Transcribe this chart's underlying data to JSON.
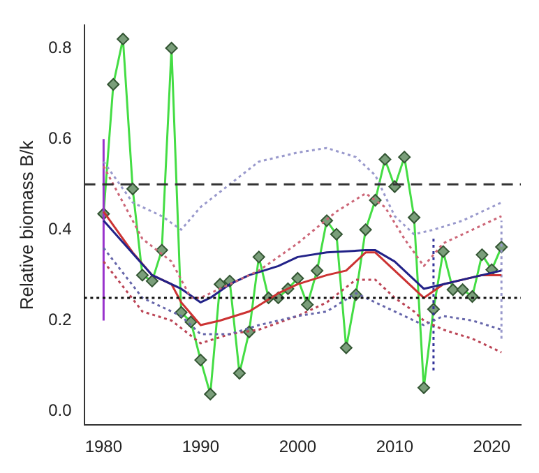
{
  "chart_data": {
    "type": "line",
    "ylabel": "Relative biomass B/k",
    "xlim": [
      1978,
      2023
    ],
    "xticks": [
      1980,
      1990,
      2000,
      2010,
      2020
    ],
    "ylim": [
      -0.03,
      0.85
    ],
    "yticks": [
      {
        "value": 0,
        "label": "0.0"
      },
      {
        "value": 0.2,
        "label": "0.2"
      },
      {
        "value": 0.4,
        "label": "0.4"
      },
      {
        "value": 0.6,
        "label": "0.6"
      },
      {
        "value": 0.8,
        "label": "0.8"
      }
    ],
    "grid": false,
    "legend": false,
    "series": [
      {
        "color": "#9999cc",
        "line_style": "dotted",
        "marker": "none",
        "x": [
          1980,
          1983,
          1986,
          1988,
          1990,
          1993,
          1996,
          2000,
          2003,
          2006,
          2008,
          2010,
          2012,
          2014,
          2017,
          2021
        ],
        "values": [
          0.55,
          0.46,
          0.43,
          0.4,
          0.45,
          0.5,
          0.55,
          0.57,
          0.58,
          0.56,
          0.52,
          0.43,
          0.39,
          0.4,
          0.42,
          0.46
        ]
      },
      {
        "color": "#cc6677",
        "line_style": "dotted",
        "marker": "none",
        "x": [
          1980,
          1984,
          1987,
          1989,
          1990,
          1993,
          1996,
          2000,
          2004,
          2007,
          2009,
          2011,
          2013,
          2015,
          2018,
          2021
        ],
        "values": [
          0.54,
          0.38,
          0.33,
          0.25,
          0.25,
          0.28,
          0.31,
          0.37,
          0.44,
          0.48,
          0.45,
          0.38,
          0.32,
          0.37,
          0.4,
          0.43
        ]
      },
      {
        "color": "#6666aa",
        "line_style": "dotted",
        "marker": "none",
        "x": [
          1980,
          1984,
          1988,
          1990,
          1993,
          1996,
          2000,
          2003,
          2006,
          2008,
          2011,
          2013,
          2015,
          2018,
          2021
        ],
        "values": [
          0.36,
          0.25,
          0.21,
          0.17,
          0.17,
          0.19,
          0.21,
          0.22,
          0.26,
          0.24,
          0.21,
          0.19,
          0.21,
          0.2,
          0.18
        ]
      },
      {
        "color": "#bb4455",
        "line_style": "dotted",
        "marker": "none",
        "x": [
          1980,
          1984,
          1987,
          1990,
          1993,
          1996,
          2000,
          2003,
          2006,
          2008,
          2010,
          2012,
          2013,
          2015,
          2018,
          2021
        ],
        "values": [
          0.33,
          0.22,
          0.2,
          0.15,
          0.17,
          0.18,
          0.21,
          0.24,
          0.29,
          0.29,
          0.25,
          0.22,
          0.2,
          0.18,
          0.16,
          0.13
        ]
      },
      {
        "color": "#222288",
        "line_style": "solid",
        "marker": "none",
        "x": [
          1980,
          1985,
          1988,
          1990,
          1991,
          1993,
          1995,
          1998,
          2000,
          2003,
          2007,
          2008,
          2010,
          2012,
          2013,
          2015,
          2017,
          2019,
          2021
        ],
        "values": [
          0.42,
          0.3,
          0.27,
          0.24,
          0.25,
          0.28,
          0.3,
          0.32,
          0.34,
          0.35,
          0.355,
          0.355,
          0.33,
          0.29,
          0.27,
          0.28,
          0.29,
          0.3,
          0.31
        ]
      },
      {
        "color": "#cc3333",
        "line_style": "solid",
        "marker": "none",
        "x": [
          1980,
          1983,
          1985,
          1987,
          1988,
          1990,
          1992,
          1995,
          1998,
          2000,
          2003,
          2005,
          2007,
          2008,
          2010,
          2012,
          2013,
          2015,
          2017,
          2019,
          2021
        ],
        "values": [
          0.44,
          0.35,
          0.3,
          0.28,
          0.24,
          0.19,
          0.2,
          0.22,
          0.26,
          0.28,
          0.3,
          0.31,
          0.35,
          0.35,
          0.31,
          0.27,
          0.25,
          0.28,
          0.29,
          0.3,
          0.3
        ]
      },
      {
        "color": "#9933cc",
        "line_style": "solid",
        "marker": "none",
        "x": [
          1980,
          1980
        ],
        "values": [
          0.2,
          0.6
        ]
      },
      {
        "color": "#333399",
        "line_style": "dotted",
        "marker": "none",
        "x": [
          2014,
          2014
        ],
        "values": [
          0.09,
          0.38
        ]
      },
      {
        "color": "#9999cc",
        "line_style": "dotted",
        "marker": "none",
        "x": [
          2021,
          2021
        ],
        "values": [
          0.16,
          0.42
        ]
      },
      {
        "color": "#44dd44",
        "line_style": "solid",
        "marker": "diamond",
        "x": [
          1980,
          1981,
          1982,
          1983,
          1984,
          1985,
          1986,
          1987,
          1988,
          1989,
          1990,
          1991,
          1992,
          1993,
          1994,
          1995,
          1996,
          1997,
          1998,
          1999,
          2000,
          2001,
          2002,
          2003,
          2004,
          2005,
          2006,
          2007,
          2008,
          2009,
          2010,
          2011,
          2012,
          2013,
          2014,
          2015,
          2016,
          2017,
          2018,
          2019,
          2020,
          2021
        ],
        "values": [
          0.435,
          0.72,
          0.82,
          0.49,
          0.3,
          0.287,
          0.355,
          0.8,
          0.218,
          0.197,
          0.113,
          0.038,
          0.28,
          0.287,
          0.084,
          0.175,
          0.34,
          0.25,
          0.25,
          0.27,
          0.293,
          0.235,
          0.31,
          0.42,
          0.39,
          0.14,
          0.257,
          0.4,
          0.465,
          0.555,
          0.495,
          0.56,
          0.427,
          0.052,
          0.225,
          0.352,
          0.268,
          0.268,
          0.253,
          0.345,
          0.312,
          0.362
        ]
      }
    ],
    "ref_lines": [
      {
        "axis": "y",
        "value": 0.5,
        "line_style": "dashed",
        "color": "#333333"
      },
      {
        "axis": "y",
        "value": 0.25,
        "line_style": "dotted",
        "color": "#111111"
      }
    ]
  }
}
